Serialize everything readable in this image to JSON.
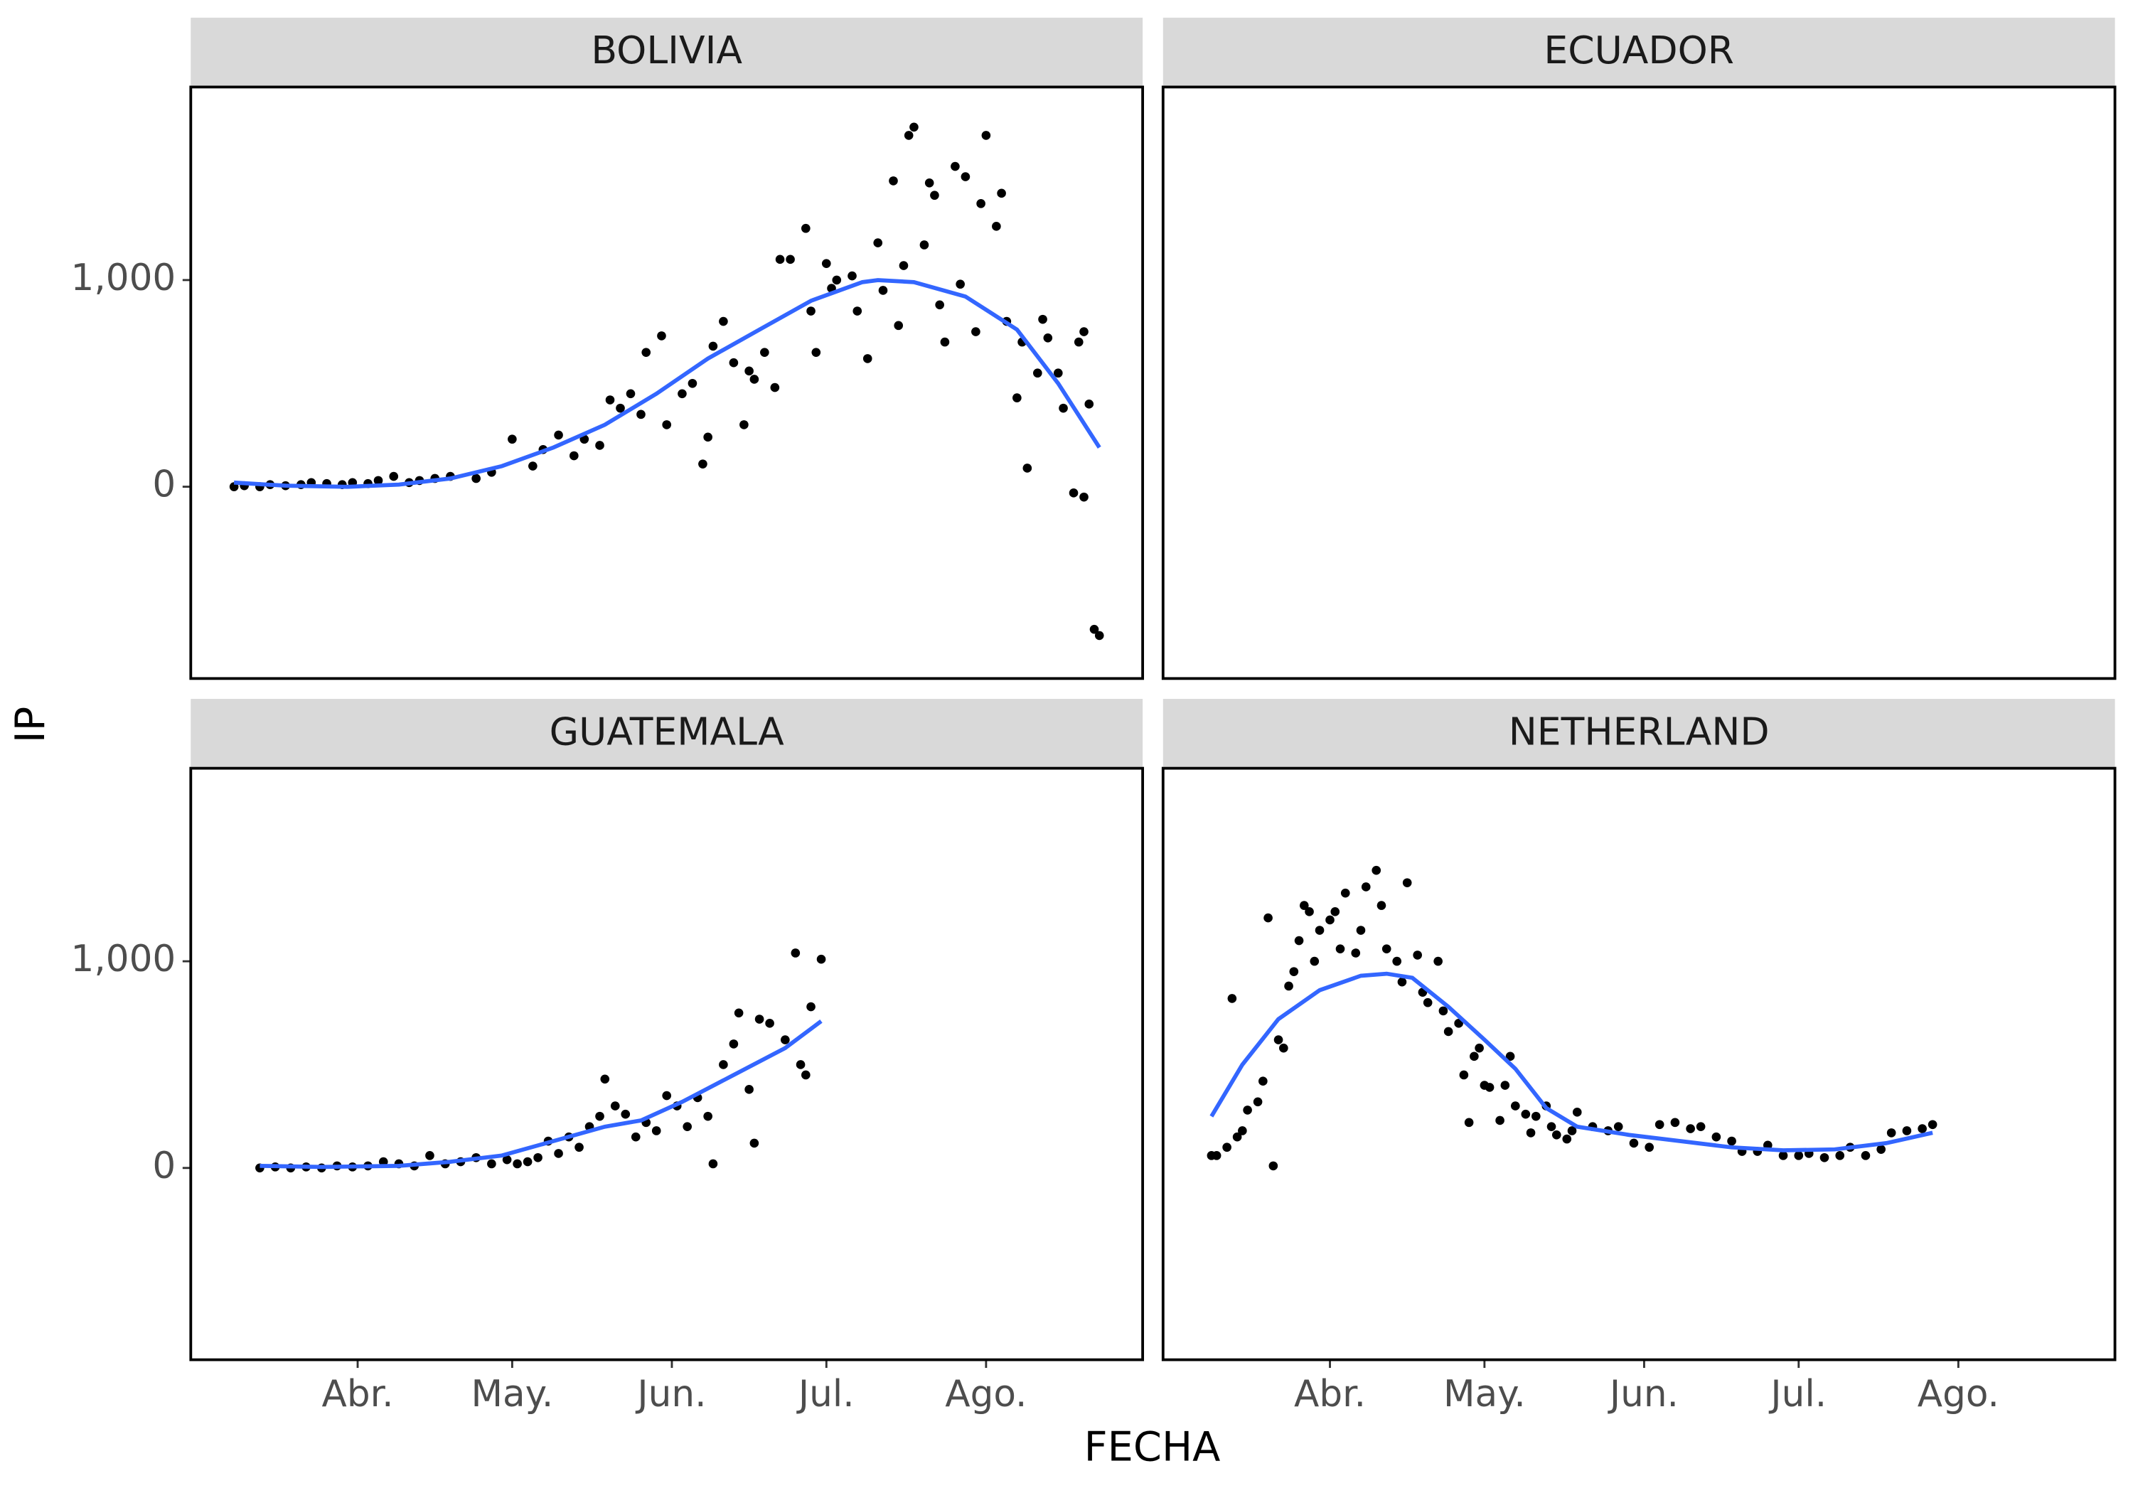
{
  "chart_data": {
    "type": "scatter",
    "xlabel": "FECHA",
    "ylabel": "IP",
    "xlim": [
      59.6,
      244.4
    ],
    "ylim": [
      -928,
      1934
    ],
    "xticks": [
      {
        "value": 92,
        "label": "Abr."
      },
      {
        "value": 122,
        "label": "May."
      },
      {
        "value": 153,
        "label": "Jun."
      },
      {
        "value": 183,
        "label": "Jul."
      },
      {
        "value": 214,
        "label": "Ago."
      }
    ],
    "yticks": [
      0,
      {
        "value": 1000,
        "label": "1,000"
      }
    ],
    "point_color": "#000000",
    "smooth_color": "#3366ff",
    "facets": [
      {
        "title": "BOLIVIA",
        "x": [
          68,
          70,
          73,
          75,
          78,
          81,
          83,
          86,
          89,
          91,
          94,
          96,
          99,
          102,
          104,
          107,
          110,
          115,
          118,
          122,
          126,
          128,
          131,
          134,
          136,
          139,
          141,
          143,
          145,
          147,
          148,
          151,
          152,
          155,
          157,
          159,
          160,
          161,
          163,
          165,
          167,
          168,
          169,
          171,
          173,
          174,
          176,
          179,
          180,
          181,
          183,
          184,
          185,
          188,
          189,
          191,
          193,
          194,
          196,
          197,
          198,
          199,
          200,
          202,
          203,
          204,
          205,
          206,
          208,
          209,
          210,
          212,
          213,
          214,
          216,
          217,
          218,
          220,
          221,
          222,
          224,
          225,
          226,
          228,
          229,
          231,
          232,
          233,
          233,
          234,
          235,
          236
        ],
        "y": [
          0,
          5,
          0,
          10,
          5,
          10,
          20,
          15,
          10,
          20,
          15,
          30,
          50,
          20,
          30,
          40,
          50,
          40,
          70,
          230,
          100,
          180,
          250,
          150,
          230,
          200,
          420,
          380,
          450,
          350,
          650,
          730,
          300,
          450,
          500,
          110,
          240,
          680,
          800,
          600,
          300,
          560,
          520,
          650,
          480,
          1100,
          1100,
          1250,
          850,
          650,
          1080,
          960,
          1000,
          1020,
          850,
          620,
          1180,
          950,
          1480,
          780,
          1070,
          1700,
          1740,
          1170,
          1470,
          1410,
          880,
          700,
          1550,
          980,
          1500,
          750,
          1370,
          1700,
          1260,
          1420,
          800,
          430,
          700,
          90,
          550,
          810,
          720,
          550,
          380,
          -30,
          700,
          750,
          -50,
          400,
          -690,
          -720
        ],
        "smooth_x": [
          68,
          78,
          90,
          100,
          110,
          120,
          130,
          140,
          150,
          160,
          170,
          180,
          190,
          193,
          200,
          210,
          220,
          228,
          236
        ],
        "smooth_y": [
          20,
          5,
          0,
          10,
          40,
          100,
          190,
          300,
          450,
          620,
          760,
          900,
          990,
          1000,
          990,
          920,
          760,
          500,
          190
        ]
      },
      {
        "title": "ECUADOR",
        "x": [],
        "y": [],
        "smooth_x": [],
        "smooth_y": []
      },
      {
        "title": "GUATEMALA",
        "x": [
          73,
          76,
          79,
          82,
          85,
          88,
          91,
          94,
          97,
          100,
          103,
          106,
          109,
          112,
          115,
          118,
          121,
          123,
          125,
          127,
          129,
          131,
          133,
          135,
          137,
          139,
          140,
          142,
          144,
          146,
          148,
          150,
          152,
          154,
          156,
          158,
          160,
          161,
          163,
          165,
          166,
          168,
          169,
          170,
          172,
          175,
          177,
          178,
          179,
          180,
          182
        ],
        "y": [
          0,
          5,
          0,
          5,
          0,
          10,
          5,
          10,
          30,
          20,
          10,
          60,
          20,
          30,
          50,
          20,
          40,
          20,
          30,
          50,
          130,
          70,
          150,
          100,
          200,
          250,
          430,
          300,
          260,
          150,
          220,
          180,
          350,
          300,
          200,
          340,
          250,
          20,
          500,
          600,
          750,
          380,
          120,
          720,
          700,
          620,
          1040,
          500,
          450,
          780,
          1010
        ],
        "smooth_x": [
          73,
          85,
          100,
          110,
          120,
          130,
          140,
          147,
          155,
          165,
          175,
          182
        ],
        "smooth_y": [
          10,
          5,
          10,
          30,
          60,
          130,
          200,
          230,
          320,
          450,
          580,
          710
        ]
      },
      {
        "title": "NETHERLAND",
        "x": [
          69,
          70,
          72,
          73,
          74,
          75,
          76,
          78,
          79,
          80,
          81,
          82,
          83,
          84,
          85,
          86,
          87,
          88,
          89,
          90,
          92,
          93,
          94,
          95,
          97,
          98,
          99,
          101,
          102,
          103,
          105,
          106,
          107,
          109,
          110,
          111,
          113,
          114,
          115,
          117,
          118,
          119,
          120,
          121,
          122,
          123,
          125,
          126,
          127,
          128,
          130,
          131,
          132,
          134,
          135,
          136,
          138,
          139,
          140,
          143,
          146,
          148,
          151,
          154,
          156,
          159,
          162,
          164,
          167,
          170,
          172,
          175,
          177,
          180,
          183,
          185,
          188,
          191,
          193,
          196,
          199,
          201,
          204,
          207,
          209
        ],
        "y": [
          60,
          60,
          100,
          820,
          150,
          180,
          280,
          320,
          420,
          1210,
          10,
          620,
          580,
          880,
          950,
          1100,
          1270,
          1240,
          1000,
          1150,
          1200,
          1240,
          1060,
          1330,
          1040,
          1150,
          1360,
          1440,
          1270,
          1060,
          1000,
          900,
          1380,
          1030,
          850,
          800,
          1000,
          760,
          660,
          700,
          450,
          220,
          540,
          580,
          400,
          390,
          230,
          400,
          540,
          300,
          260,
          170,
          250,
          300,
          200,
          160,
          140,
          180,
          270,
          200,
          180,
          200,
          120,
          100,
          210,
          220,
          190,
          200,
          150,
          130,
          80,
          80,
          110,
          60,
          60,
          70,
          50,
          60,
          100,
          60,
          90,
          170,
          180,
          190,
          210
        ],
        "smooth_x": [
          69,
          75,
          82,
          90,
          98,
          103,
          108,
          115,
          122,
          128,
          134,
          140,
          150,
          160,
          170,
          180,
          190,
          200,
          209
        ],
        "smooth_y": [
          250,
          500,
          720,
          860,
          930,
          940,
          920,
          780,
          620,
          480,
          290,
          200,
          160,
          130,
          100,
          85,
          90,
          120,
          170
        ]
      }
    ]
  }
}
